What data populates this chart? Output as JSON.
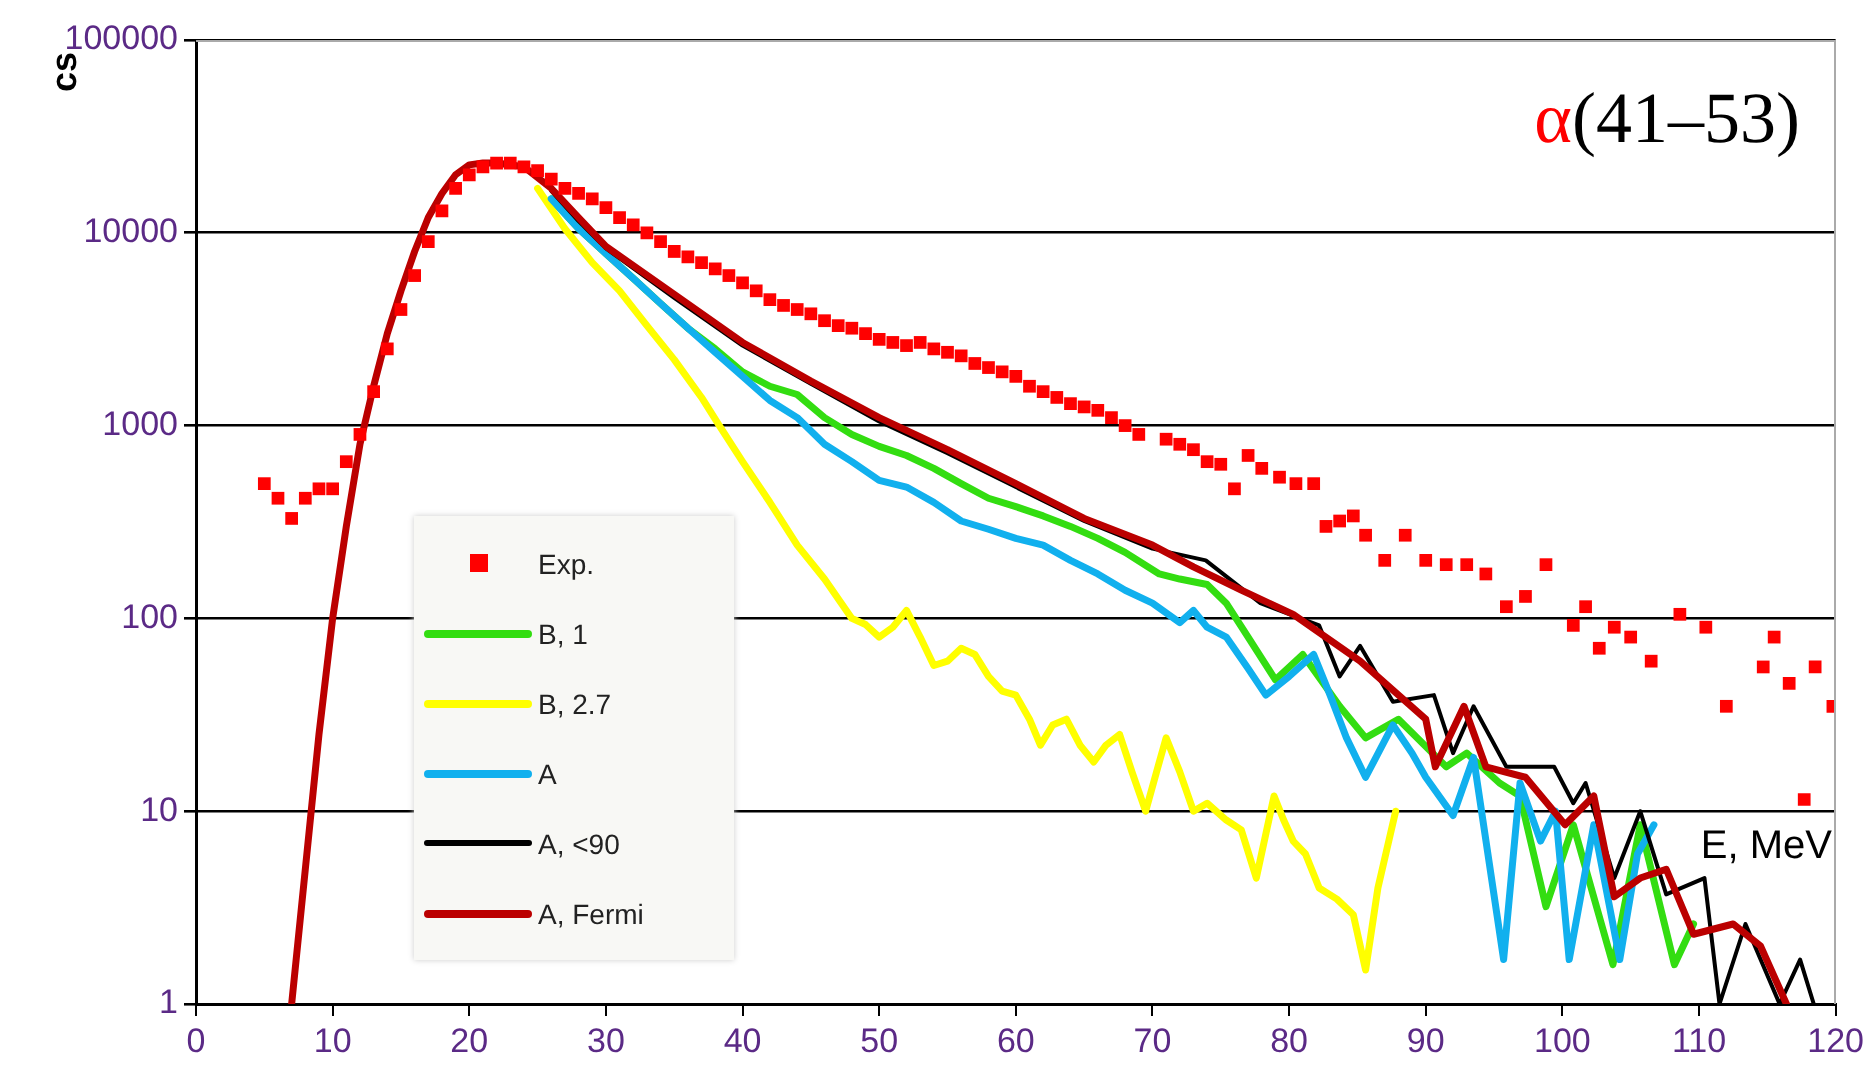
{
  "chart_data": {
    "type": "line",
    "title": "α(41–53)",
    "xlabel": "E, MeV",
    "ylabel": "cs",
    "log": "y",
    "grid": "y",
    "legend": "bottom left",
    "xlim": [
      0,
      120
    ],
    "xticks": [
      0,
      10,
      20,
      30,
      40,
      50,
      60,
      70,
      80,
      90,
      100,
      110,
      120
    ],
    "ylim": [
      1,
      100000
    ],
    "yticks": [
      1,
      10,
      100,
      1000,
      10000,
      100000
    ],
    "series": [
      {
        "name": "Exp.",
        "type": "scatter",
        "marker": "square",
        "color": "#ff0000",
        "x": [
          5,
          6,
          7,
          8,
          9,
          10,
          11,
          12,
          13,
          14,
          15,
          16,
          17,
          18,
          19,
          20,
          21,
          22,
          23,
          24,
          25,
          26,
          27,
          28,
          29,
          30,
          31,
          32,
          33,
          34,
          35,
          36,
          37,
          38,
          39,
          40,
          41,
          42,
          43,
          44,
          45,
          46,
          47,
          48,
          49,
          50,
          51,
          52,
          53,
          54,
          55,
          56,
          57,
          58,
          59,
          60,
          61,
          62,
          63,
          64,
          65,
          66,
          67,
          68,
          69,
          71,
          72,
          73,
          74,
          75,
          76,
          77,
          78,
          79.3,
          80.5,
          81.8,
          82.7,
          83.7,
          84.7,
          85.6,
          87,
          88.5,
          90,
          91.5,
          93,
          94.4,
          95.9,
          97.3,
          98.8,
          100.8,
          101.7,
          102.7,
          103.8,
          105,
          106.5,
          108.6,
          110.5,
          112,
          114.7,
          115.5,
          116.6,
          117.7,
          118.5,
          119.8
        ],
        "values": [
          500,
          420,
          330,
          420,
          470,
          470,
          650,
          900,
          1500,
          2500,
          4000,
          6000,
          9000,
          13000,
          17000,
          20000,
          22000,
          23000,
          23000,
          22000,
          21000,
          19000,
          17000,
          16000,
          15000,
          13500,
          12000,
          11000,
          10000,
          9000,
          8000,
          7500,
          7000,
          6500,
          6000,
          5500,
          5000,
          4500,
          4200,
          4000,
          3800,
          3500,
          3300,
          3200,
          3000,
          2800,
          2700,
          2600,
          2700,
          2500,
          2400,
          2300,
          2100,
          2000,
          1900,
          1800,
          1600,
          1500,
          1400,
          1300,
          1250,
          1200,
          1100,
          1000,
          900,
          850,
          800,
          750,
          650,
          630,
          470,
          700,
          600,
          540,
          500,
          500,
          300,
          320,
          340,
          270,
          200,
          270,
          200,
          190,
          190,
          170,
          115,
          130,
          190,
          92,
          115,
          70,
          90,
          80,
          60,
          105,
          90,
          35,
          56,
          80,
          46,
          11.5,
          56,
          35
        ]
      },
      {
        "name": "B, 1",
        "type": "line",
        "color": "#33dd11",
        "x": [
          26,
          28,
          30,
          32,
          34,
          36,
          38,
          40,
          42,
          44,
          46,
          48,
          50,
          52,
          54,
          56,
          58,
          60,
          62,
          64,
          66,
          68,
          70.5,
          72,
          74,
          75.4,
          77,
          79,
          81,
          83.7,
          85.6,
          88,
          91.5,
          93,
          95.4,
          96.9,
          98.8,
          100.8,
          103.7,
          105.7,
          108.2,
          109.6
        ],
        "values": [
          15000,
          10500,
          7800,
          5800,
          4300,
          3200,
          2500,
          1900,
          1600,
          1450,
          1100,
          900,
          780,
          700,
          600,
          500,
          420,
          380,
          340,
          300,
          260,
          220,
          170,
          160,
          150,
          120,
          80,
          48,
          65,
          35,
          24,
          30,
          17,
          20,
          14,
          12,
          3.2,
          8.5,
          1.6,
          8.5,
          1.6,
          2.6
        ]
      },
      {
        "name": "B, 2.7",
        "type": "line",
        "color": "#ffff00",
        "x": [
          25,
          27,
          29,
          31,
          33,
          35,
          37,
          38.3,
          40,
          42,
          44,
          46,
          48,
          49,
          50,
          51,
          52,
          53,
          54,
          55,
          56,
          57,
          58,
          59,
          60,
          61,
          61.8,
          62.7,
          63.7,
          64.7,
          65.7,
          66.6,
          67.6,
          68.5,
          69.5,
          70.3,
          71,
          72,
          73,
          74,
          75.4,
          76.5,
          77.6,
          78.9,
          79.6,
          80.3,
          81.2,
          82.2,
          83.5,
          84.7,
          85.6,
          86.5,
          87.8
        ],
        "values": [
          17000,
          10500,
          7000,
          5000,
          3300,
          2200,
          1400,
          1000,
          650,
          400,
          240,
          160,
          100,
          93,
          80,
          90,
          110,
          80,
          57,
          60,
          70,
          65,
          50,
          42,
          40,
          30,
          22,
          28,
          30,
          22,
          18,
          22,
          25,
          16,
          10,
          16,
          24,
          16,
          10,
          11,
          9,
          8,
          4.5,
          12,
          9,
          7,
          6,
          4,
          3.5,
          2.9,
          1.5,
          4,
          10
        ]
      },
      {
        "name": "A",
        "type": "line",
        "color": "#11b0ee",
        "x": [
          26,
          28,
          30,
          32,
          34,
          36,
          38,
          40,
          42,
          44,
          46,
          48,
          50,
          52,
          54,
          56,
          58,
          60,
          62,
          64,
          66,
          68,
          70,
          72,
          73,
          74,
          75.4,
          77,
          78.3,
          80,
          81.8,
          83,
          84.2,
          85.6,
          87.6,
          89,
          90,
          92,
          93.5,
          95.7,
          96.9,
          98.4,
          99.5,
          100.5,
          102.3,
          104.2,
          105.5,
          106.7
        ],
        "values": [
          15000,
          10500,
          7800,
          5800,
          4300,
          3200,
          2400,
          1800,
          1350,
          1100,
          800,
          650,
          520,
          480,
          400,
          320,
          290,
          260,
          240,
          200,
          170,
          140,
          120,
          95,
          110,
          90,
          80,
          55,
          40,
          50,
          65,
          40,
          24,
          15,
          28,
          20,
          15,
          9.5,
          19,
          1.7,
          14,
          7,
          10,
          1.7,
          8.5,
          1.7,
          6,
          8.5
        ]
      },
      {
        "name": "A, <90",
        "type": "line",
        "color": "#000000",
        "x": [
          26,
          28,
          30,
          35,
          40,
          45,
          50,
          55,
          60,
          65,
          70,
          73.9,
          77.9,
          82.2,
          83.7,
          85.2,
          87.6,
          90.6,
          92,
          93.5,
          95.9,
          99.4,
          100.8,
          101.7,
          103.8,
          105.7,
          107.6,
          110.4,
          111.5,
          113.4,
          115.9,
          117.4,
          118.4
        ],
        "values": [
          16500,
          11500,
          8300,
          4600,
          2600,
          1650,
          1050,
          720,
          480,
          320,
          230,
          200,
          120,
          92,
          50,
          72,
          37,
          40,
          20,
          35,
          17,
          17,
          11,
          14,
          4.5,
          10,
          3.7,
          4.5,
          1,
          2.6,
          1,
          1.7,
          1
        ]
      },
      {
        "name": "A, Fermi",
        "type": "line",
        "color": "#bb0000",
        "x": [
          7,
          8,
          9,
          10,
          11,
          12,
          13,
          14,
          15,
          16,
          17,
          18,
          19,
          20,
          21,
          22,
          24,
          26,
          28,
          30,
          35,
          40,
          45,
          50,
          55,
          60,
          65,
          70,
          73,
          76.5,
          80.3,
          85.2,
          90,
          90.7,
          92.8,
          94.4,
          97.3,
          100.2,
          102.3,
          103.8,
          105.7,
          107.6,
          109.6,
          112.5,
          114.5,
          116.4
        ],
        "values": [
          1,
          5,
          25,
          100,
          300,
          800,
          1600,
          3000,
          5000,
          8000,
          12000,
          16000,
          20000,
          22500,
          23000,
          23000,
          22000,
          17000,
          12000,
          8500,
          4800,
          2700,
          1700,
          1100,
          750,
          500,
          330,
          240,
          185,
          140,
          105,
          60,
          30,
          17,
          35,
          17,
          15,
          8.5,
          12,
          3.6,
          4.5,
          5,
          2.3,
          2.6,
          2,
          1
        ]
      }
    ]
  }
}
